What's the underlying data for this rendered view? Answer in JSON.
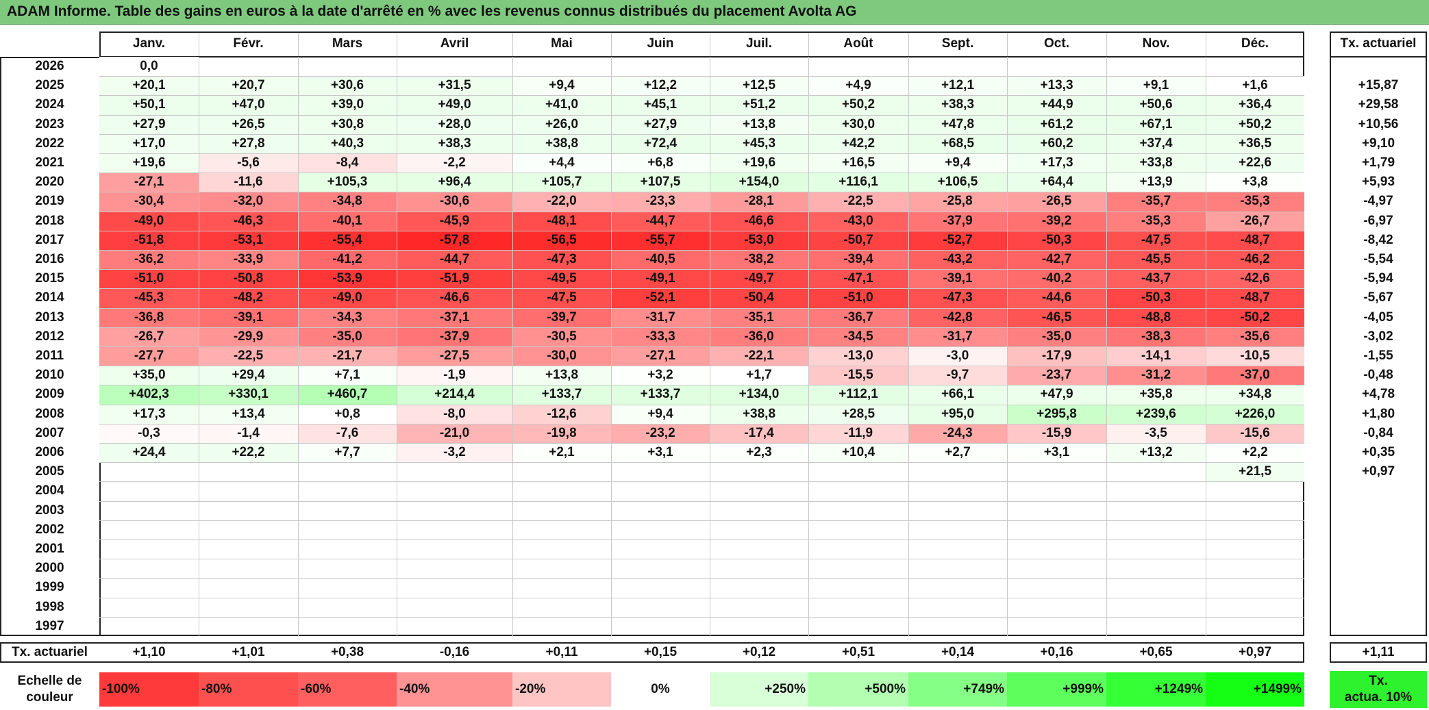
{
  "title": "ADAM Informe. Table des gains en euros à la date d'arrêté en % avec les revenus connus distribués du placement Avolta AG",
  "chart_data": {
    "type": "heatmap",
    "title": "ADAM Informe. Table des gains en euros à la date d'arrêté en % avec les revenus connus distribués du placement Avolta AG",
    "columns": [
      "Janv.",
      "Févr.",
      "Mars",
      "Avril",
      "Mai",
      "Juin",
      "Juil.",
      "Août",
      "Sept.",
      "Oct.",
      "Nov.",
      "Déc."
    ],
    "rate_header": "Tx. actuariel",
    "rows": [
      {
        "year": "2026",
        "values": [
          "0,0",
          "",
          "",
          "",
          "",
          "",
          "",
          "",
          "",
          "",
          "",
          ""
        ],
        "rate": ""
      },
      {
        "year": "2025",
        "values": [
          "+20,1",
          "+20,7",
          "+30,6",
          "+31,5",
          "+9,4",
          "+12,2",
          "+12,5",
          "+4,9",
          "+12,1",
          "+13,3",
          "+9,1",
          "+1,6"
        ],
        "rate": "+15,87"
      },
      {
        "year": "2024",
        "values": [
          "+50,1",
          "+47,0",
          "+39,0",
          "+49,0",
          "+41,0",
          "+45,1",
          "+51,2",
          "+50,2",
          "+38,3",
          "+44,9",
          "+50,6",
          "+36,4"
        ],
        "rate": "+29,58"
      },
      {
        "year": "2023",
        "values": [
          "+27,9",
          "+26,5",
          "+30,8",
          "+28,0",
          "+26,0",
          "+27,9",
          "+13,8",
          "+30,0",
          "+47,8",
          "+61,2",
          "+67,1",
          "+50,2"
        ],
        "rate": "+10,56"
      },
      {
        "year": "2022",
        "values": [
          "+17,0",
          "+27,8",
          "+40,3",
          "+38,3",
          "+38,8",
          "+72,4",
          "+45,3",
          "+42,2",
          "+68,5",
          "+60,2",
          "+37,4",
          "+36,5"
        ],
        "rate": "+9,10"
      },
      {
        "year": "2021",
        "values": [
          "+19,6",
          "-5,6",
          "-8,4",
          "-2,2",
          "+4,4",
          "+6,8",
          "+19,6",
          "+16,5",
          "+9,4",
          "+17,3",
          "+33,8",
          "+22,6"
        ],
        "rate": "+1,79"
      },
      {
        "year": "2020",
        "values": [
          "-27,1",
          "-11,6",
          "+105,3",
          "+96,4",
          "+105,7",
          "+107,5",
          "+154,0",
          "+116,1",
          "+106,5",
          "+64,4",
          "+13,9",
          "+3,8"
        ],
        "rate": "+5,93"
      },
      {
        "year": "2019",
        "values": [
          "-30,4",
          "-32,0",
          "-34,8",
          "-30,6",
          "-22,0",
          "-23,3",
          "-28,1",
          "-22,5",
          "-25,8",
          "-26,5",
          "-35,7",
          "-35,3"
        ],
        "rate": "-4,97"
      },
      {
        "year": "2018",
        "values": [
          "-49,0",
          "-46,3",
          "-40,1",
          "-45,9",
          "-48,1",
          "-44,7",
          "-46,6",
          "-43,0",
          "-37,9",
          "-39,2",
          "-35,3",
          "-26,7"
        ],
        "rate": "-6,97"
      },
      {
        "year": "2017",
        "values": [
          "-51,8",
          "-53,1",
          "-55,4",
          "-57,8",
          "-56,5",
          "-55,7",
          "-53,0",
          "-50,7",
          "-52,7",
          "-50,3",
          "-47,5",
          "-48,7"
        ],
        "rate": "-8,42"
      },
      {
        "year": "2016",
        "values": [
          "-36,2",
          "-33,9",
          "-41,2",
          "-44,7",
          "-47,3",
          "-40,5",
          "-38,2",
          "-39,4",
          "-43,2",
          "-42,7",
          "-45,5",
          "-46,2"
        ],
        "rate": "-5,54"
      },
      {
        "year": "2015",
        "values": [
          "-51,0",
          "-50,8",
          "-53,9",
          "-51,9",
          "-49,5",
          "-49,1",
          "-49,7",
          "-47,1",
          "-39,1",
          "-40,2",
          "-43,7",
          "-42,6"
        ],
        "rate": "-5,94"
      },
      {
        "year": "2014",
        "values": [
          "-45,3",
          "-48,2",
          "-49,0",
          "-46,6",
          "-47,5",
          "-52,1",
          "-50,4",
          "-51,0",
          "-47,3",
          "-44,6",
          "-50,3",
          "-48,7"
        ],
        "rate": "-5,67"
      },
      {
        "year": "2013",
        "values": [
          "-36,8",
          "-39,1",
          "-34,3",
          "-37,1",
          "-39,7",
          "-31,7",
          "-35,1",
          "-36,7",
          "-42,8",
          "-46,5",
          "-48,8",
          "-50,2"
        ],
        "rate": "-4,05"
      },
      {
        "year": "2012",
        "values": [
          "-26,7",
          "-29,9",
          "-35,0",
          "-37,9",
          "-30,5",
          "-33,3",
          "-36,0",
          "-34,5",
          "-31,7",
          "-35,0",
          "-38,3",
          "-35,6"
        ],
        "rate": "-3,02"
      },
      {
        "year": "2011",
        "values": [
          "-27,7",
          "-22,5",
          "-21,7",
          "-27,5",
          "-30,0",
          "-27,1",
          "-22,1",
          "-13,0",
          "-3,0",
          "-17,9",
          "-14,1",
          "-10,5"
        ],
        "rate": "-1,55"
      },
      {
        "year": "2010",
        "values": [
          "+35,0",
          "+29,4",
          "+7,1",
          "-1,9",
          "+13,8",
          "+3,2",
          "+1,7",
          "-15,5",
          "-9,7",
          "-23,7",
          "-31,2",
          "-37,0"
        ],
        "rate": "-0,48"
      },
      {
        "year": "2009",
        "values": [
          "+402,3",
          "+330,1",
          "+460,7",
          "+214,4",
          "+133,7",
          "+133,7",
          "+134,0",
          "+112,1",
          "+66,1",
          "+47,9",
          "+35,8",
          "+34,8"
        ],
        "rate": "+4,78"
      },
      {
        "year": "2008",
        "values": [
          "+17,3",
          "+13,4",
          "+0,8",
          "-8,0",
          "-12,6",
          "+9,4",
          "+38,8",
          "+28,5",
          "+95,0",
          "+295,8",
          "+239,6",
          "+226,0"
        ],
        "rate": "+1,80"
      },
      {
        "year": "2007",
        "values": [
          "-0,3",
          "-1,4",
          "-7,6",
          "-21,0",
          "-19,8",
          "-23,2",
          "-17,4",
          "-11,9",
          "-24,3",
          "-15,9",
          "-3,5",
          "-15,6"
        ],
        "rate": "-0,84"
      },
      {
        "year": "2006",
        "values": [
          "+24,4",
          "+22,2",
          "+7,7",
          "-3,2",
          "+2,1",
          "+3,1",
          "+2,3",
          "+10,4",
          "+2,7",
          "+3,1",
          "+13,2",
          "+2,2"
        ],
        "rate": "+0,35"
      },
      {
        "year": "2005",
        "values": [
          "",
          "",
          "",
          "",
          "",
          "",
          "",
          "",
          "",
          "",
          "",
          "+21,5"
        ],
        "rate": "+0,97"
      },
      {
        "year": "2004",
        "values": [
          "",
          "",
          "",
          "",
          "",
          "",
          "",
          "",
          "",
          "",
          "",
          ""
        ],
        "rate": ""
      },
      {
        "year": "2003",
        "values": [
          "",
          "",
          "",
          "",
          "",
          "",
          "",
          "",
          "",
          "",
          "",
          ""
        ],
        "rate": ""
      },
      {
        "year": "2002",
        "values": [
          "",
          "",
          "",
          "",
          "",
          "",
          "",
          "",
          "",
          "",
          "",
          ""
        ],
        "rate": ""
      },
      {
        "year": "2001",
        "values": [
          "",
          "",
          "",
          "",
          "",
          "",
          "",
          "",
          "",
          "",
          "",
          ""
        ],
        "rate": ""
      },
      {
        "year": "2000",
        "values": [
          "",
          "",
          "",
          "",
          "",
          "",
          "",
          "",
          "",
          "",
          "",
          ""
        ],
        "rate": ""
      },
      {
        "year": "1999",
        "values": [
          "",
          "",
          "",
          "",
          "",
          "",
          "",
          "",
          "",
          "",
          "",
          ""
        ],
        "rate": ""
      },
      {
        "year": "1998",
        "values": [
          "",
          "",
          "",
          "",
          "",
          "",
          "",
          "",
          "",
          "",
          "",
          ""
        ],
        "rate": ""
      },
      {
        "year": "1997",
        "values": [
          "",
          "",
          "",
          "",
          "",
          "",
          "",
          "",
          "",
          "",
          "",
          ""
        ],
        "rate": ""
      }
    ],
    "summary": {
      "label": "Tx. actuariel",
      "values": [
        "+1,10",
        "+1,01",
        "+0,38",
        "-0,16",
        "+0,11",
        "+0,15",
        "+0,12",
        "+0,51",
        "+0,14",
        "+0,16",
        "+0,65",
        "+0,97"
      ],
      "rate": "+1,11"
    },
    "scale": {
      "label_line1": "Echelle de",
      "label_line2": "couleur",
      "items": [
        {
          "label": "-100%",
          "color": "#ff3a3a",
          "align": "left"
        },
        {
          "label": "-80%",
          "color": "#ff5050",
          "align": "left"
        },
        {
          "label": "-60%",
          "color": "#ff5f5f",
          "align": "left"
        },
        {
          "label": "-40%",
          "color": "#ff9393",
          "align": "left"
        },
        {
          "label": "-20%",
          "color": "#ffc4c4",
          "align": "left"
        },
        {
          "label": "0%",
          "color": "#ffffff",
          "align": "center"
        },
        {
          "label": "+250%",
          "color": "#d9ffd9",
          "align": "right"
        },
        {
          "label": "+500%",
          "color": "#b2ffb2",
          "align": "right"
        },
        {
          "label": "+749%",
          "color": "#86ff86",
          "align": "right"
        },
        {
          "label": "+999%",
          "color": "#5cff5c",
          "align": "right"
        },
        {
          "label": "+1249%",
          "color": "#35ff35",
          "align": "right"
        },
        {
          "label": "+1499%",
          "color": "#14ff14",
          "align": "right"
        }
      ],
      "rate_line1": "Tx.",
      "rate_line2": "actua. 10%",
      "rate_color": "#2ef22e"
    }
  }
}
